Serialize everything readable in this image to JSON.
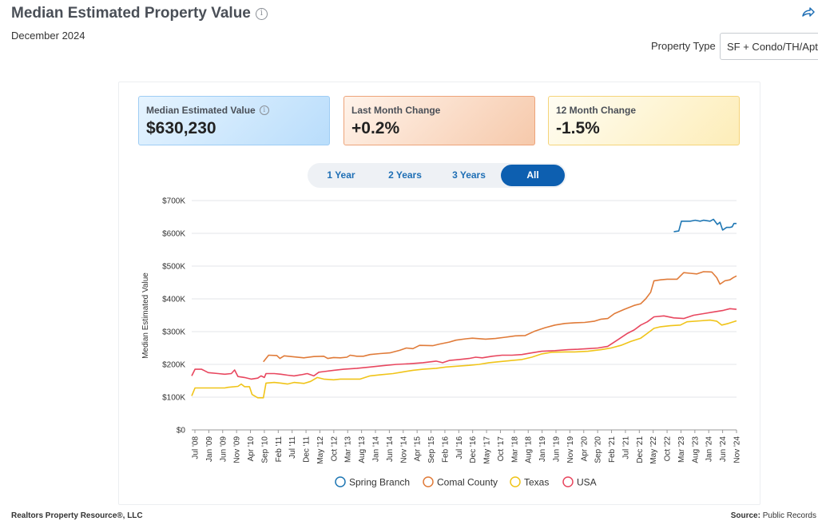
{
  "header": {
    "title": "Median Estimated Property Value",
    "subtitle": "December 2024",
    "property_type_label": "Property Type",
    "property_type_value": "SF + Condo/TH/Apt"
  },
  "kpis": [
    {
      "label": "Median Estimated Value",
      "value": "$630,230"
    },
    {
      "label": "Last Month Change",
      "value": "+0.2%"
    },
    {
      "label": "12 Month Change",
      "value": "-1.5%"
    }
  ],
  "ranges": [
    "1 Year",
    "2 Years",
    "3 Years",
    "All"
  ],
  "active_range": "All",
  "footer": {
    "left": "Realtors Property Resource®, LLC",
    "source_label": "Source:",
    "source_value": "Public Records"
  },
  "chart_data": {
    "type": "line",
    "ylabel": "Median Estimated Value",
    "ylim": [
      0,
      700000
    ],
    "yticks": [
      "$0",
      "$100K",
      "$200K",
      "$300K",
      "$400K",
      "$500K",
      "$600K",
      "$700K"
    ],
    "xticks": [
      "Jul '08",
      "Jan '09",
      "Jun '09",
      "Nov '09",
      "Apr '10",
      "Sep '10",
      "Feb '11",
      "Jul '11",
      "Dec '11",
      "May '12",
      "Oct '12",
      "Mar '13",
      "Aug '13",
      "Jan '14",
      "Jun '14",
      "Nov '14",
      "Apr '15",
      "Sep '15",
      "Feb '16",
      "Jul '16",
      "Dec '16",
      "May '17",
      "Oct '17",
      "Mar '18",
      "Aug '18",
      "Jan '19",
      "Jun '19",
      "Nov '19",
      "Apr '20",
      "Sep '20",
      "Feb '21",
      "Jul '21",
      "Dec '21",
      "May '22",
      "Oct '22",
      "Mar '23",
      "Aug '23",
      "Jan '24",
      "Jun '24",
      "Nov '24"
    ],
    "grid": true,
    "legend_position": "bottom",
    "series": [
      {
        "name": "Spring Branch",
        "color": "#1f77b4",
        "points": [
          [
            2023.1,
            605000
          ],
          [
            2023.25,
            607000
          ],
          [
            2023.33,
            637000
          ],
          [
            2023.6,
            637000
          ],
          [
            2023.75,
            640000
          ],
          [
            2023.9,
            637000
          ],
          [
            2024.0,
            640000
          ],
          [
            2024.2,
            637000
          ],
          [
            2024.3,
            643000
          ],
          [
            2024.42,
            627000
          ],
          [
            2024.5,
            634000
          ],
          [
            2024.58,
            610000
          ],
          [
            2024.7,
            618000
          ],
          [
            2024.8,
            618000
          ],
          [
            2024.87,
            620000
          ],
          [
            2024.92,
            630000
          ],
          [
            2025.0,
            630000
          ]
        ]
      },
      {
        "name": "Comal County",
        "color": "#e07b39",
        "points": [
          [
            2010.67,
            208000
          ],
          [
            2010.83,
            228000
          ],
          [
            2011.08,
            227000
          ],
          [
            2011.17,
            218000
          ],
          [
            2011.3,
            226000
          ],
          [
            2011.6,
            223000
          ],
          [
            2011.9,
            220000
          ],
          [
            2012.2,
            224000
          ],
          [
            2012.5,
            225000
          ],
          [
            2012.62,
            218000
          ],
          [
            2012.8,
            221000
          ],
          [
            2013.0,
            220000
          ],
          [
            2013.2,
            222000
          ],
          [
            2013.3,
            228000
          ],
          [
            2013.5,
            225000
          ],
          [
            2013.7,
            225000
          ],
          [
            2013.9,
            230000
          ],
          [
            2014.2,
            233000
          ],
          [
            2014.5,
            235000
          ],
          [
            2014.8,
            243000
          ],
          [
            2015.0,
            250000
          ],
          [
            2015.2,
            248000
          ],
          [
            2015.4,
            258000
          ],
          [
            2015.8,
            257000
          ],
          [
            2016.0,
            262000
          ],
          [
            2016.3,
            268000
          ],
          [
            2016.5,
            274000
          ],
          [
            2016.8,
            278000
          ],
          [
            2017.0,
            280000
          ],
          [
            2017.4,
            277000
          ],
          [
            2017.7,
            279000
          ],
          [
            2018.0,
            283000
          ],
          [
            2018.3,
            287000
          ],
          [
            2018.6,
            288000
          ],
          [
            2018.9,
            302000
          ],
          [
            2019.2,
            312000
          ],
          [
            2019.5,
            320000
          ],
          [
            2019.8,
            325000
          ],
          [
            2020.1,
            327000
          ],
          [
            2020.4,
            328000
          ],
          [
            2020.7,
            332000
          ],
          [
            2020.9,
            338000
          ],
          [
            2021.1,
            340000
          ],
          [
            2021.3,
            355000
          ],
          [
            2021.6,
            368000
          ],
          [
            2021.9,
            380000
          ],
          [
            2022.1,
            385000
          ],
          [
            2022.25,
            400000
          ],
          [
            2022.4,
            420000
          ],
          [
            2022.5,
            455000
          ],
          [
            2022.7,
            458000
          ],
          [
            2022.9,
            460000
          ],
          [
            2023.2,
            460000
          ],
          [
            2023.4,
            480000
          ],
          [
            2023.6,
            478000
          ],
          [
            2023.8,
            476000
          ],
          [
            2024.0,
            483000
          ],
          [
            2024.25,
            482000
          ],
          [
            2024.4,
            465000
          ],
          [
            2024.5,
            445000
          ],
          [
            2024.65,
            455000
          ],
          [
            2024.8,
            458000
          ],
          [
            2024.9,
            465000
          ],
          [
            2025.0,
            470000
          ]
        ]
      },
      {
        "name": "Texas",
        "color": "#f0c419",
        "points": [
          [
            2008.5,
            104000
          ],
          [
            2008.6,
            128000
          ],
          [
            2008.8,
            128000
          ],
          [
            2009.2,
            128000
          ],
          [
            2009.5,
            128000
          ],
          [
            2009.6,
            130000
          ],
          [
            2009.9,
            133000
          ],
          [
            2010.0,
            140000
          ],
          [
            2010.1,
            132000
          ],
          [
            2010.25,
            132000
          ],
          [
            2010.33,
            108000
          ],
          [
            2010.5,
            98000
          ],
          [
            2010.67,
            98000
          ],
          [
            2010.75,
            143000
          ],
          [
            2011.0,
            145000
          ],
          [
            2011.2,
            143000
          ],
          [
            2011.4,
            140000
          ],
          [
            2011.6,
            145000
          ],
          [
            2011.9,
            142000
          ],
          [
            2012.1,
            148000
          ],
          [
            2012.3,
            160000
          ],
          [
            2012.5,
            155000
          ],
          [
            2012.8,
            153000
          ],
          [
            2013.0,
            155000
          ],
          [
            2013.3,
            155000
          ],
          [
            2013.6,
            155000
          ],
          [
            2013.9,
            165000
          ],
          [
            2014.2,
            168000
          ],
          [
            2014.6,
            172000
          ],
          [
            2014.9,
            177000
          ],
          [
            2015.2,
            182000
          ],
          [
            2015.5,
            185000
          ],
          [
            2015.9,
            188000
          ],
          [
            2016.2,
            192000
          ],
          [
            2016.6,
            195000
          ],
          [
            2016.9,
            197000
          ],
          [
            2017.2,
            200000
          ],
          [
            2017.5,
            205000
          ],
          [
            2017.8,
            208000
          ],
          [
            2018.2,
            212000
          ],
          [
            2018.5,
            215000
          ],
          [
            2018.8,
            222000
          ],
          [
            2019.1,
            232000
          ],
          [
            2019.4,
            237000
          ],
          [
            2019.8,
            238000
          ],
          [
            2020.1,
            238000
          ],
          [
            2020.5,
            240000
          ],
          [
            2020.9,
            245000
          ],
          [
            2021.2,
            250000
          ],
          [
            2021.5,
            258000
          ],
          [
            2021.8,
            270000
          ],
          [
            2022.1,
            280000
          ],
          [
            2022.3,
            295000
          ],
          [
            2022.5,
            310000
          ],
          [
            2022.7,
            315000
          ],
          [
            2023.0,
            318000
          ],
          [
            2023.3,
            320000
          ],
          [
            2023.5,
            330000
          ],
          [
            2023.9,
            333000
          ],
          [
            2024.2,
            335000
          ],
          [
            2024.4,
            332000
          ],
          [
            2024.55,
            320000
          ],
          [
            2024.75,
            325000
          ],
          [
            2025.0,
            333000
          ]
        ]
      },
      {
        "name": "USA",
        "color": "#e8475f",
        "points": [
          [
            2008.5,
            165000
          ],
          [
            2008.6,
            185000
          ],
          [
            2008.8,
            185000
          ],
          [
            2009.0,
            175000
          ],
          [
            2009.3,
            172000
          ],
          [
            2009.5,
            170000
          ],
          [
            2009.7,
            172000
          ],
          [
            2009.8,
            183000
          ],
          [
            2009.9,
            163000
          ],
          [
            2010.1,
            160000
          ],
          [
            2010.3,
            155000
          ],
          [
            2010.5,
            158000
          ],
          [
            2010.6,
            165000
          ],
          [
            2010.7,
            160000
          ],
          [
            2010.75,
            172000
          ],
          [
            2011.0,
            172000
          ],
          [
            2011.2,
            170000
          ],
          [
            2011.4,
            167000
          ],
          [
            2011.6,
            165000
          ],
          [
            2011.8,
            168000
          ],
          [
            2012.0,
            172000
          ],
          [
            2012.2,
            165000
          ],
          [
            2012.35,
            176000
          ],
          [
            2012.5,
            178000
          ],
          [
            2012.8,
            182000
          ],
          [
            2013.1,
            185000
          ],
          [
            2013.5,
            188000
          ],
          [
            2013.9,
            192000
          ],
          [
            2014.3,
            196000
          ],
          [
            2014.7,
            200000
          ],
          [
            2015.1,
            202000
          ],
          [
            2015.5,
            205000
          ],
          [
            2015.9,
            210000
          ],
          [
            2016.1,
            205000
          ],
          [
            2016.3,
            212000
          ],
          [
            2016.6,
            215000
          ],
          [
            2016.9,
            218000
          ],
          [
            2017.1,
            222000
          ],
          [
            2017.3,
            220000
          ],
          [
            2017.6,
            225000
          ],
          [
            2017.9,
            228000
          ],
          [
            2018.2,
            228000
          ],
          [
            2018.5,
            230000
          ],
          [
            2018.8,
            235000
          ],
          [
            2019.1,
            240000
          ],
          [
            2019.5,
            242000
          ],
          [
            2019.9,
            245000
          ],
          [
            2020.2,
            246000
          ],
          [
            2020.5,
            248000
          ],
          [
            2020.8,
            250000
          ],
          [
            2021.1,
            255000
          ],
          [
            2021.4,
            275000
          ],
          [
            2021.7,
            295000
          ],
          [
            2021.9,
            305000
          ],
          [
            2022.1,
            320000
          ],
          [
            2022.3,
            330000
          ],
          [
            2022.5,
            345000
          ],
          [
            2022.8,
            348000
          ],
          [
            2023.1,
            342000
          ],
          [
            2023.4,
            340000
          ],
          [
            2023.7,
            350000
          ],
          [
            2024.0,
            355000
          ],
          [
            2024.3,
            360000
          ],
          [
            2024.6,
            365000
          ],
          [
            2024.8,
            370000
          ],
          [
            2025.0,
            368000
          ]
        ]
      }
    ],
    "xlim": [
      2008.5,
      2025.0
    ]
  }
}
